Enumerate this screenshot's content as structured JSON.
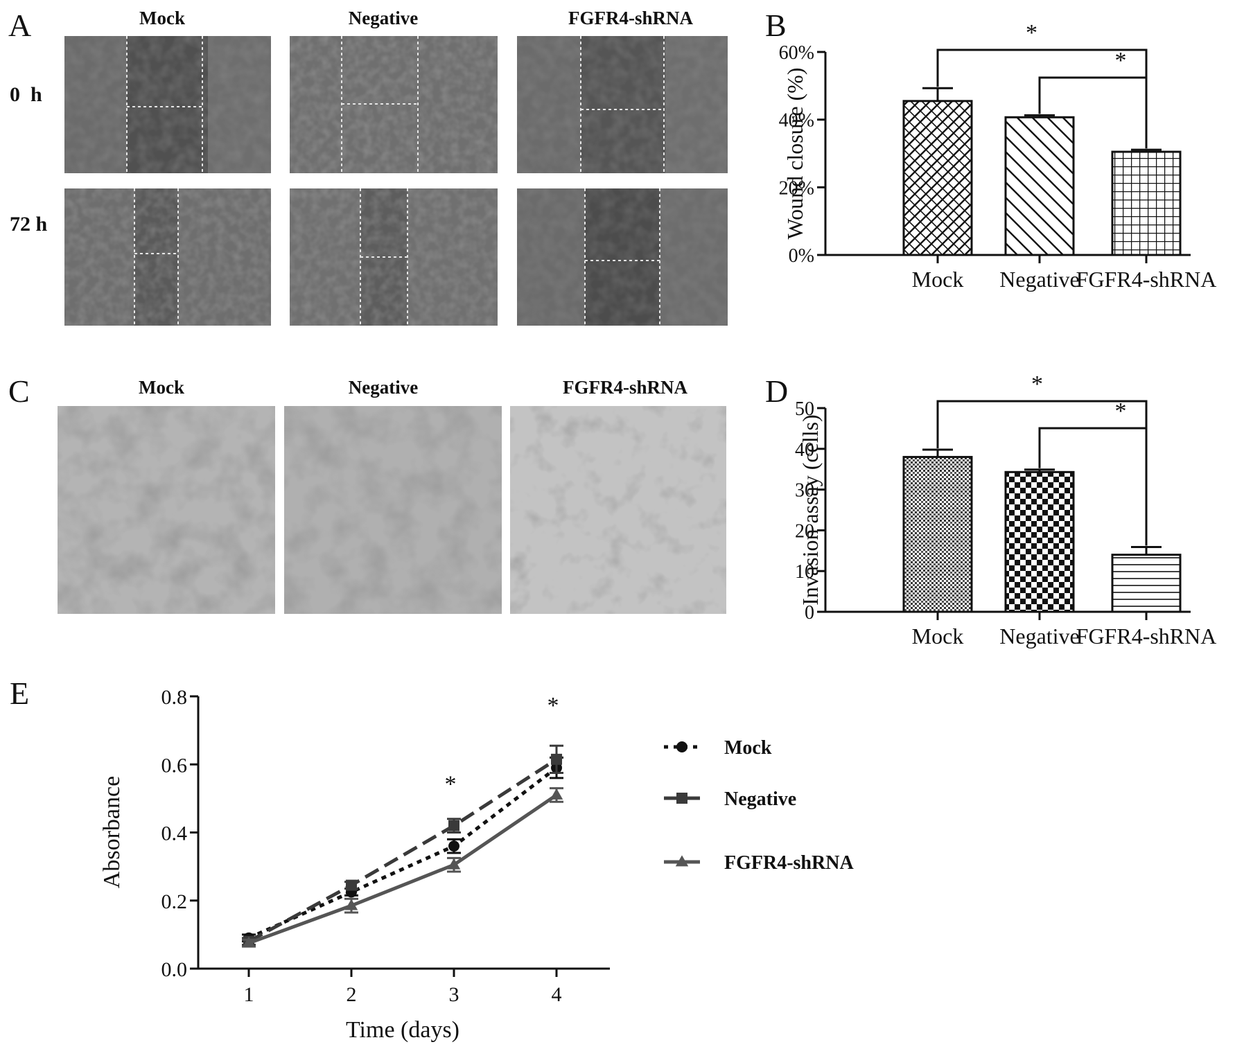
{
  "panels": {
    "A": {
      "label": "A",
      "columns": [
        "Mock",
        "Negative",
        "FGFR4-shRNA"
      ],
      "rows": [
        "0  h",
        "72 h"
      ]
    },
    "C": {
      "label": "C",
      "columns": [
        "Mock",
        "Negative",
        "FGFR4-shRNA"
      ]
    },
    "B_label": "B",
    "D_label": "D",
    "E_label": "E"
  },
  "chart_data": [
    {
      "id": "B",
      "type": "bar",
      "categories": [
        "Mock",
        "Negative",
        "FGFR4-shRNA"
      ],
      "values": [
        45.5,
        40.7,
        30.5
      ],
      "errors": [
        3.8,
        0.6,
        0.6
      ],
      "patterns": [
        "crosshatch-diagonal",
        "diagonal",
        "grid"
      ],
      "ylabel": "Wound closure (%)",
      "ylim": [
        0,
        60
      ],
      "yticks": [
        0,
        20,
        40,
        60
      ],
      "ytick_labels": [
        "0%",
        "20%",
        "40%",
        "60%"
      ],
      "significance": [
        {
          "from": "Mock",
          "to": "FGFR4-shRNA",
          "mark": "*"
        },
        {
          "from": "Negative",
          "to": "FGFR4-shRNA",
          "mark": "*"
        }
      ]
    },
    {
      "id": "D",
      "type": "bar",
      "categories": [
        "Mock",
        "Negative",
        "FGFR4-shRNA"
      ],
      "values": [
        38,
        34.3,
        14
      ],
      "errors": [
        1.8,
        0.6,
        1.9
      ],
      "patterns": [
        "fine-dots",
        "checker",
        "horizontal-lines"
      ],
      "ylabel": "Invasion assay (cells)",
      "ylim": [
        0,
        50
      ],
      "yticks": [
        0,
        10,
        20,
        30,
        40,
        50
      ],
      "ytick_labels": [
        "0",
        "10",
        "20",
        "30",
        "40",
        "50"
      ],
      "significance": [
        {
          "from": "Mock",
          "to": "FGFR4-shRNA",
          "mark": "*"
        },
        {
          "from": "Negative",
          "to": "FGFR4-shRNA",
          "mark": "*"
        }
      ]
    },
    {
      "id": "E",
      "type": "line",
      "x": [
        1,
        2,
        3,
        4
      ],
      "xticks": [
        "1",
        "2",
        "3",
        "4"
      ],
      "xlabel": "Time (days)",
      "ylabel": "Absorbance",
      "ylim": [
        0,
        0.8
      ],
      "yticks": [
        "0.0",
        "0.2",
        "0.4",
        "0.6",
        "0.8"
      ],
      "series": [
        {
          "name": "Mock",
          "values": [
            0.09,
            0.225,
            0.36,
            0.59
          ],
          "errors": [
            0.01,
            0.01,
            0.02,
            0.03
          ],
          "marker": "circle",
          "dash": "dotted"
        },
        {
          "name": "Negative",
          "values": [
            0.08,
            0.245,
            0.42,
            0.615
          ],
          "errors": [
            0.01,
            0.01,
            0.02,
            0.04
          ],
          "marker": "square",
          "dash": "dashed"
        },
        {
          "name": "FGFR4-shRNA",
          "values": [
            0.075,
            0.185,
            0.305,
            0.51
          ],
          "errors": [
            0.01,
            0.02,
            0.02,
            0.02
          ],
          "marker": "triangle",
          "dash": "solid"
        }
      ],
      "significance": [
        {
          "x": 3,
          "mark": "*"
        },
        {
          "x": 4,
          "mark": "*"
        }
      ],
      "legend_position": "right"
    }
  ]
}
